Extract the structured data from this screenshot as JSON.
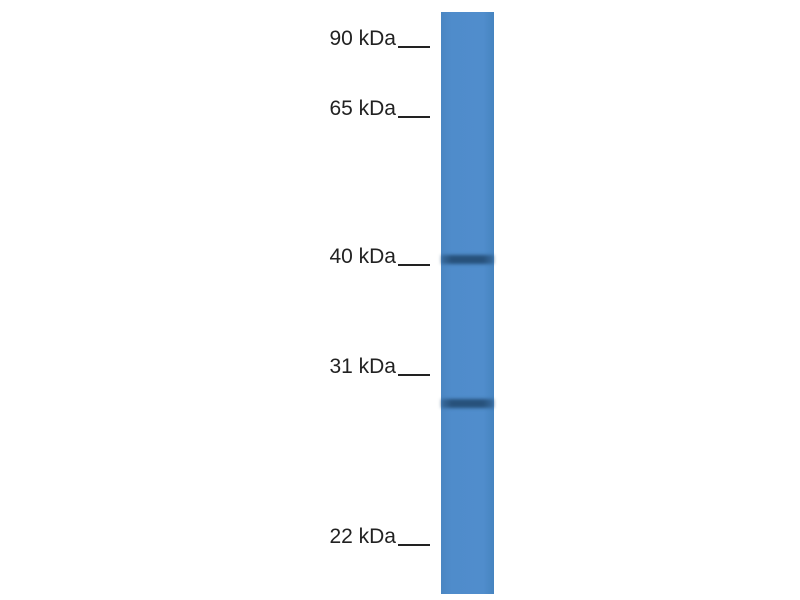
{
  "markers": [
    {
      "label": "90 kDa"
    },
    {
      "label": "65 kDa"
    },
    {
      "label": "40 kDa"
    },
    {
      "label": "31 kDa"
    },
    {
      "label": "22 kDa"
    }
  ],
  "lane": {
    "color": "#4f8ccb",
    "band_color": "#2f5f8a",
    "bands_count": 2
  }
}
